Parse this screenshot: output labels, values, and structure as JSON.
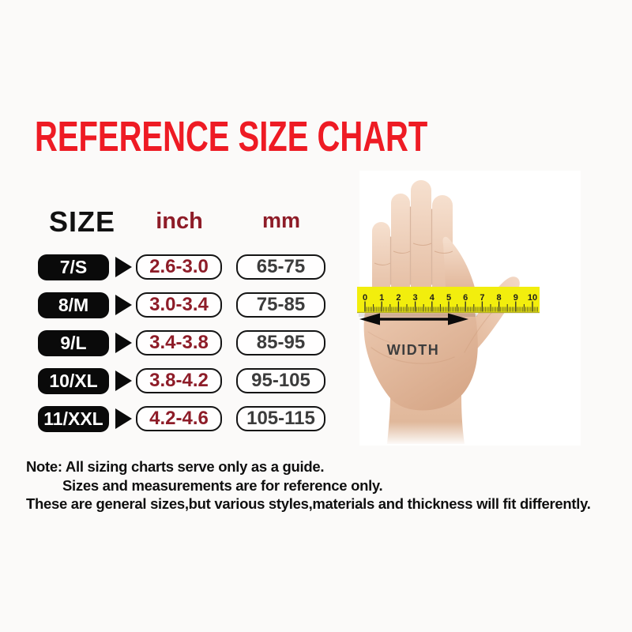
{
  "title": "REFERENCE SIZE CHART",
  "table": {
    "headers": {
      "size": "SIZE",
      "inch": "inch",
      "mm": "mm"
    },
    "rows": [
      {
        "size": "7/S",
        "inch": "2.6-3.0",
        "mm": "65-75"
      },
      {
        "size": "8/M",
        "inch": "3.0-3.4",
        "mm": "75-85"
      },
      {
        "size": "9/L",
        "inch": "3.4-3.8",
        "mm": "85-95"
      },
      {
        "size": "10/XL",
        "inch": "3.8-4.2",
        "mm": "95-105"
      },
      {
        "size": "11/XXL",
        "inch": "4.2-4.6",
        "mm": "105-115"
      }
    ]
  },
  "chart_data": {
    "type": "table",
    "title": "REFERENCE SIZE CHART",
    "columns": [
      "SIZE",
      "inch",
      "mm"
    ],
    "rows": [
      [
        "7/S",
        "2.6-3.0",
        "65-75"
      ],
      [
        "8/M",
        "3.0-3.4",
        "75-85"
      ],
      [
        "9/L",
        "3.4-3.8",
        "85-95"
      ],
      [
        "10/XL",
        "3.8-4.2",
        "95-105"
      ],
      [
        "11/XXL",
        "4.2-4.6",
        "105-115"
      ]
    ]
  },
  "figure": {
    "ruler_numbers": [
      "0",
      "1",
      "2",
      "3",
      "4",
      "5",
      "6",
      "7",
      "8",
      "9",
      "10"
    ],
    "width_label": "WIDTH"
  },
  "note": {
    "line1": "Note: All sizing charts serve only as a guide.",
    "line2": "Sizes and measurements are for reference only.",
    "line3": "These are general sizes,but various styles,materials and thickness will fit differently."
  },
  "colors": {
    "title_red": "#ee1b24",
    "maroon": "#8e1c28",
    "pill_black": "#0a0a0a",
    "value_gray": "#3c3c3c",
    "ruler_yellow": "#f2ee0d"
  }
}
